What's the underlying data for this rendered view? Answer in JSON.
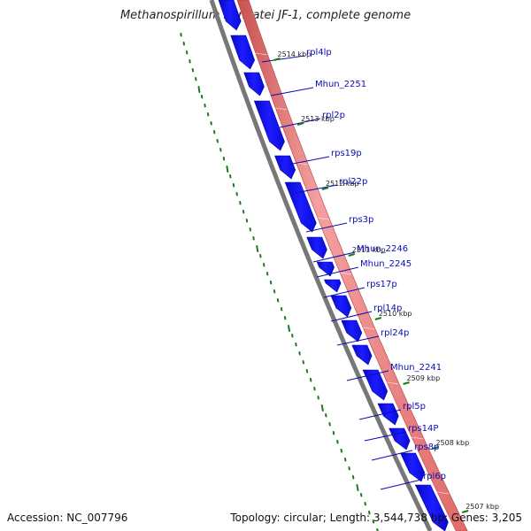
{
  "title": "Methanospirillum hungatei JF-1, complete genome",
  "accession_text": "Accession: NC_007796",
  "topology_text": "Topology: circular; Length: 3,544,738 bp; Genes: 3,205",
  "colors": {
    "backbone": "#777777",
    "forward_strand": "#1212f0",
    "reverse_strand": "#f08a8a",
    "ticks": "#1a7a1a",
    "gene_label": "#0b0bb8"
  },
  "scale_labels": [
    "2514 kbp",
    "2513 kbp",
    "2512 kbp",
    "2511 kbp",
    "2510 kbp",
    "2509 kbp",
    "2508 kbp",
    "2507 kbp"
  ],
  "gene_labels": [
    "rpl4lp",
    "Mhun_2251",
    "rpl2p",
    "rps19p",
    "rpl22p",
    "rps3p",
    "Mhun_2246",
    "Mhun_2245",
    "rps17p",
    "rpl14p",
    "rpl24p",
    "Mhun_2241",
    "rpl5p",
    "rps14P",
    "rps8p",
    "rpl6p"
  ]
}
